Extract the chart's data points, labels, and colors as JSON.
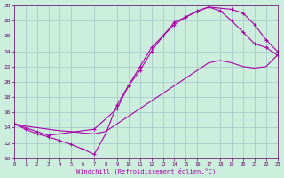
{
  "xlabel": "Windchill (Refroidissement éolien,°C)",
  "bg_color": "#cceedd",
  "line_color": "#aa00aa",
  "grid_color": "#aacccc",
  "xmin": 0,
  "xmax": 23,
  "ymin": 10,
  "ymax": 30,
  "line1_x": [
    0,
    1,
    2,
    3,
    4,
    5,
    6,
    7,
    8,
    9,
    10,
    11,
    12,
    13,
    14,
    15,
    16,
    17,
    18,
    19,
    20,
    21,
    22,
    23
  ],
  "line1_y": [
    14.5,
    13.8,
    13.2,
    12.8,
    12.3,
    11.8,
    11.2,
    10.5,
    13.2,
    17.0,
    19.5,
    22.0,
    24.5,
    26.0,
    27.5,
    28.5,
    29.3,
    29.8,
    29.3,
    28.0,
    26.5,
    25.0,
    24.5,
    23.5
  ],
  "line2_x": [
    0,
    2,
    3,
    7,
    9,
    10,
    11,
    12,
    13,
    14,
    15,
    16,
    17,
    19,
    20,
    21,
    22,
    23
  ],
  "line2_y": [
    14.5,
    13.5,
    13.0,
    13.8,
    16.5,
    19.5,
    21.5,
    24.0,
    26.0,
    27.8,
    28.5,
    29.2,
    29.8,
    29.5,
    29.0,
    27.5,
    25.5,
    24.0
  ],
  "line3_x": [
    0,
    1,
    2,
    3,
    4,
    5,
    6,
    7,
    8,
    9,
    10,
    11,
    12,
    13,
    14,
    15,
    16,
    17,
    18,
    19,
    20,
    21,
    22,
    23
  ],
  "line3_y": [
    14.5,
    14.2,
    14.0,
    13.8,
    13.6,
    13.5,
    13.3,
    13.2,
    13.5,
    14.5,
    15.5,
    16.5,
    17.5,
    18.5,
    19.5,
    20.5,
    21.5,
    22.5,
    22.8,
    22.5,
    22.0,
    21.8,
    22.0,
    23.5
  ]
}
